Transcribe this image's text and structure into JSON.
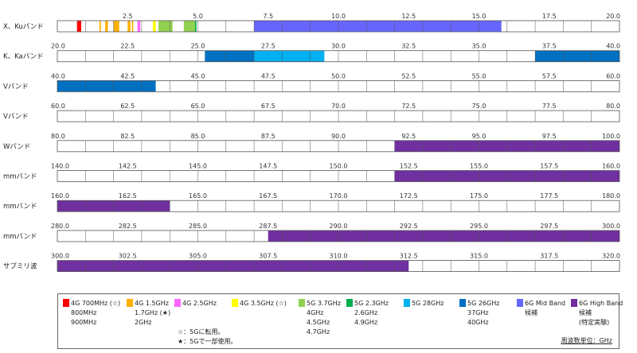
{
  "chart_data": {
    "type": "band_allocation",
    "unit_label": "周波数単位：GHz",
    "rows": [
      {
        "label": "X、Kuバンド",
        "range": [
          0,
          20
        ],
        "ticks": [
          "2.5",
          "5.0",
          "7.5",
          "10.0",
          "12.5",
          "15.0",
          "17.5",
          "20.0"
        ],
        "segments": [
          {
            "band": "4G 700MHz",
            "from": 0.7,
            "to": 0.85
          },
          {
            "band": "4G 1.5GHz",
            "from": 1.5,
            "to": 1.55
          },
          {
            "band": "4G 1.5GHz",
            "from": 1.7,
            "to": 1.8
          },
          {
            "band": "4G 1.5GHz",
            "from": 2.0,
            "to": 2.2
          },
          {
            "band": "4G 1.5GHz",
            "from": 2.5,
            "to": 2.6
          },
          {
            "band": "4G 1.5GHz",
            "from": 2.65,
            "to": 2.7
          },
          {
            "band": "4G 2.5GHz",
            "from": 2.85,
            "to": 2.95
          },
          {
            "band": "4G 3.5GHz",
            "from": 3.4,
            "to": 3.5
          },
          {
            "band": "5G 3.7GHz",
            "from": 3.6,
            "to": 4.1
          },
          {
            "band": "5G 3.7GHz",
            "from": 4.5,
            "to": 4.9
          },
          {
            "band": "5G 2.3GHz",
            "from": 4.9,
            "to": 4.95
          },
          {
            "band": "6G Mid Band",
            "from": 7.0,
            "to": 15.8
          }
        ]
      },
      {
        "label": "K、Kaバンド",
        "range": [
          20,
          40
        ],
        "ticks": [
          "20.0",
          "22.5",
          "25.0",
          "27.5",
          "30.0",
          "32.5",
          "35.0",
          "37.5",
          "40.0"
        ],
        "segments": [
          {
            "band": "5G 26GHz",
            "from": 25.25,
            "to": 27.0
          },
          {
            "band": "5G 28GHz",
            "from": 27.0,
            "to": 29.5
          },
          {
            "band": "5G 26GHz",
            "from": 37.0,
            "to": 40.0
          }
        ]
      },
      {
        "label": "Vバンド",
        "range": [
          40,
          60
        ],
        "ticks": [
          "40.0",
          "42.5",
          "45.0",
          "47.5",
          "50.0",
          "52.5",
          "55.0",
          "57.5",
          "60.0"
        ],
        "segments": [
          {
            "band": "5G 26GHz",
            "from": 40.0,
            "to": 43.5
          }
        ]
      },
      {
        "label": "Vバンド",
        "range": [
          60,
          80
        ],
        "ticks": [
          "60.0",
          "62.5",
          "65.0",
          "67.5",
          "70.0",
          "72.5",
          "75.0",
          "77.5",
          "80.0"
        ],
        "segments": []
      },
      {
        "label": "Wバンド",
        "range": [
          80,
          100
        ],
        "ticks": [
          "80.0",
          "82.5",
          "85.0",
          "87.5",
          "90.0",
          "92.5",
          "95.0",
          "97.5",
          "100.0"
        ],
        "segments": [
          {
            "band": "6G High Band",
            "from": 92.0,
            "to": 100.0
          }
        ]
      },
      {
        "label": "mmバンド",
        "range": [
          140,
          160
        ],
        "ticks": [
          "140.0",
          "142.5",
          "145.0",
          "147.5",
          "150.0",
          "152.5",
          "155.0",
          "157.5",
          "160.0"
        ],
        "segments": [
          {
            "band": "6G High Band",
            "from": 152.0,
            "to": 160.0
          }
        ]
      },
      {
        "label": "mmバンド",
        "range": [
          160,
          180
        ],
        "ticks": [
          "160.0",
          "162.5",
          "165.0",
          "167.5",
          "170.0",
          "172.5",
          "175.0",
          "177.5",
          "180.0"
        ],
        "segments": [
          {
            "band": "6G High Band",
            "from": 160.0,
            "to": 164.0
          }
        ]
      },
      {
        "label": "mmバンド",
        "range": [
          280,
          300
        ],
        "ticks": [
          "280.0",
          "282.5",
          "285.0",
          "287.5",
          "290.0",
          "292.5",
          "295.0",
          "297.5",
          "300.0"
        ],
        "segments": [
          {
            "band": "6G High Band",
            "from": 287.5,
            "to": 300.0
          }
        ]
      },
      {
        "label": "サブミリ波",
        "range": [
          300,
          320
        ],
        "ticks": [
          "300.0",
          "302.5",
          "305.0",
          "307.5",
          "310.0",
          "312.5",
          "315.0",
          "317.5",
          "320.0"
        ],
        "segments": [
          {
            "band": "6G High Band",
            "from": 300.0,
            "to": 312.5
          }
        ]
      }
    ],
    "legend": [
      {
        "name": "4G 700MHz (☆)",
        "color": "#ff0000",
        "extra": [
          "800MHz",
          "900MHz"
        ]
      },
      {
        "name": "4G 1.5GHz",
        "color": "#ffb000",
        "extra": [
          "1.7GHz (★)",
          "2GHz"
        ]
      },
      {
        "name": "4G 2.5GHz",
        "color": "#ff66ff",
        "extra": []
      },
      {
        "name": "4G 3.5GHz (☆)",
        "color": "#ffff00",
        "extra": []
      },
      {
        "name": "5G 3.7GHz",
        "color": "#92d050",
        "extra": [
          "4GHz",
          "4.5GHz",
          "4.7GHz"
        ]
      },
      {
        "name": "5G 2.3GHz",
        "color": "#00b050",
        "extra": [
          "2.6GHz",
          "4.9GHz"
        ]
      },
      {
        "name": "5G 28GHz",
        "color": "#00b0f0",
        "extra": []
      },
      {
        "name": "5G 26GHz",
        "color": "#0070c0",
        "extra": [
          "37GHz",
          "40GHz"
        ]
      },
      {
        "name": "6G Mid Band",
        "color": "#6666ff",
        "extra": [
          "候補"
        ]
      },
      {
        "name": "6G High Band",
        "color": "#7030a0",
        "extra": [
          "候補",
          "(特定実験)"
        ]
      }
    ],
    "notes": [
      "☆：5Gに転用。",
      "★：5Gで一部使用。"
    ]
  }
}
